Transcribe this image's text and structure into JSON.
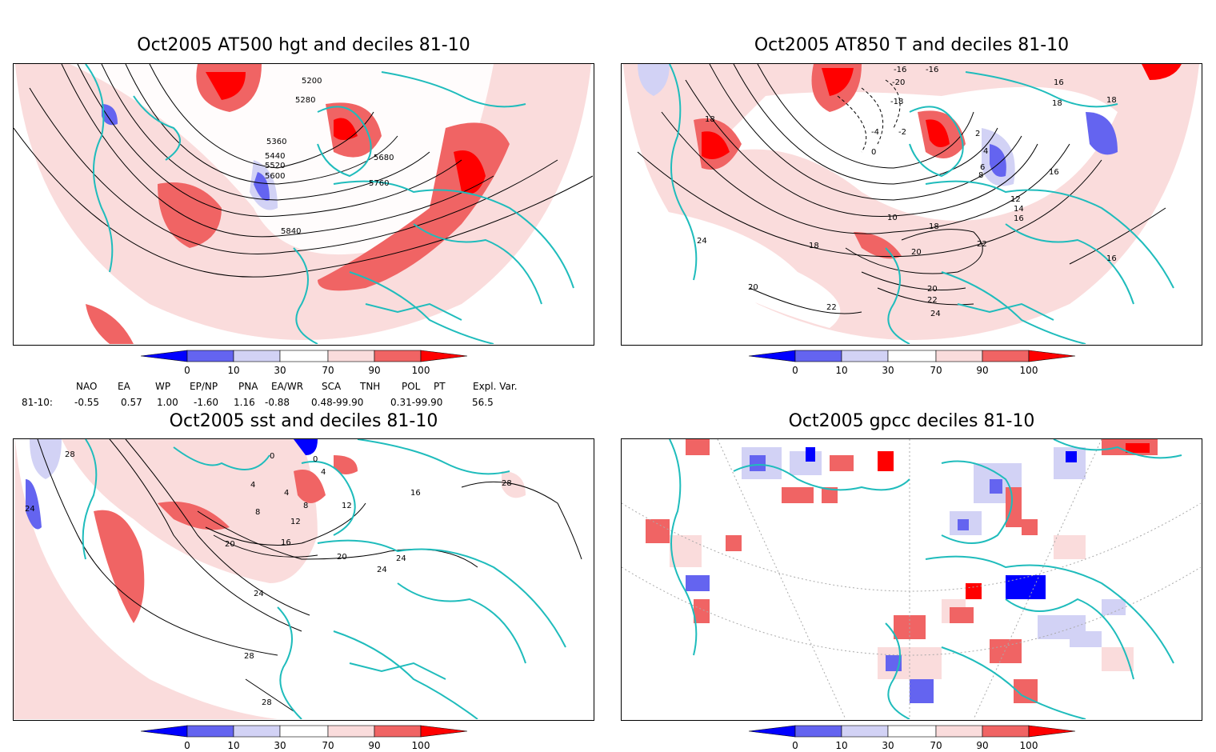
{
  "panels": [
    {
      "title": "Oct2005 AT500 hgt and deciles 81-10",
      "contour_labels": [
        "5200",
        "5280",
        "5360",
        "5440",
        "5520",
        "5600",
        "5680",
        "5760",
        "5840"
      ]
    },
    {
      "title": "Oct2005 AT850 T and deciles 81-10",
      "contour_labels": [
        "-16",
        "-20",
        "-16",
        "18",
        "-18",
        "-2",
        "-4",
        "0",
        "2",
        "4",
        "6",
        "8",
        "10",
        "12",
        "14",
        "16",
        "18",
        "20",
        "22",
        "24",
        "18",
        "16",
        "20",
        "22",
        "24",
        "22",
        "20",
        "18",
        "16",
        "18",
        "16",
        "18",
        "20",
        "22",
        "24"
      ]
    },
    {
      "title": "Oct2005 sst and deciles 81-10",
      "contour_labels": [
        "28",
        "24",
        "0",
        "0",
        "4",
        "4",
        "4",
        "8",
        "8",
        "12",
        "12",
        "16",
        "16",
        "20",
        "20",
        "24",
        "24",
        "24",
        "28",
        "28",
        "28"
      ]
    },
    {
      "title": "Oct2005 gpcc deciles 81-10",
      "contour_labels": []
    }
  ],
  "colorbar": {
    "tick_labels": [
      "0",
      "10",
      "30",
      "70",
      "90",
      "100"
    ],
    "colors": [
      "#0000ff",
      "#6464f0",
      "#d2d2f5",
      "#ffffff",
      "#fadcdc",
      "#f06464",
      "#ff0000"
    ]
  },
  "indices": {
    "headers": [
      "NAO",
      "EA",
      "WP",
      "EP/NP",
      "PNA",
      "EA/WR",
      "SCA",
      "TNH",
      "POL",
      "PT",
      "Expl. Var."
    ],
    "row_label": "81-10:",
    "values": [
      "-0.55",
      "0.57",
      "1.00",
      "-1.60",
      "1.16",
      "-0.88",
      "0.48-99.90",
      "",
      "0.31-99.90",
      "",
      "56.5"
    ]
  },
  "colors": {
    "coast": "#1fbcbc",
    "light_red": "#fadcdc",
    "mid_red": "#f06464",
    "dark_red": "#ff0000",
    "light_blue": "#d2d2f5",
    "mid_blue": "#6464f0",
    "dark_blue": "#0000ff"
  }
}
